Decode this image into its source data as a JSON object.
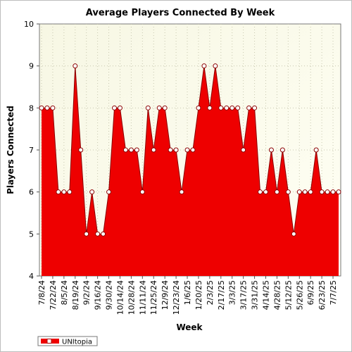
{
  "chart_data": {
    "type": "area",
    "title": "Average Players Connected By Week",
    "xlabel": "Week",
    "ylabel": "Players Connected",
    "ylim": [
      4,
      10
    ],
    "yticks": [
      4,
      5,
      6,
      7,
      8,
      9,
      10
    ],
    "grid": true,
    "legend_placement": "bottom-left",
    "tick_labels_x": [
      "7/8/24",
      "7/22/24",
      "8/5/24",
      "8/19/24",
      "9/2/24",
      "9/16/24",
      "9/30/24",
      "10/14/24",
      "10/28/24",
      "11/11/24",
      "11/25/24",
      "12/9/24",
      "12/23/24",
      "1/6/25",
      "1/20/25",
      "2/3/25",
      "2/17/25",
      "3/3/25",
      "3/17/25",
      "3/31/25",
      "4/14/25",
      "4/28/25",
      "5/12/25",
      "5/26/25",
      "6/9/25",
      "6/23/25",
      "7/7/25"
    ],
    "x": [
      "7/8/24",
      "7/15/24",
      "7/22/24",
      "7/29/24",
      "8/5/24",
      "8/12/24",
      "8/19/24",
      "8/26/24",
      "9/2/24",
      "9/9/24",
      "9/16/24",
      "9/23/24",
      "9/30/24",
      "10/7/24",
      "10/14/24",
      "10/21/24",
      "10/28/24",
      "11/4/24",
      "11/11/24",
      "11/18/24",
      "11/25/24",
      "12/2/24",
      "12/9/24",
      "12/16/24",
      "12/23/24",
      "12/30/24",
      "1/6/25",
      "1/13/25",
      "1/20/25",
      "1/27/25",
      "2/3/25",
      "2/10/25",
      "2/17/25",
      "2/24/25",
      "3/3/25",
      "3/10/25",
      "3/17/25",
      "3/24/25",
      "3/31/25",
      "4/7/25",
      "4/14/25",
      "4/21/25",
      "4/28/25",
      "5/5/25",
      "5/12/25",
      "5/19/25",
      "5/26/25",
      "6/2/25",
      "6/9/25",
      "6/16/25",
      "6/23/25",
      "6/30/25",
      "7/7/25",
      "7/14/25"
    ],
    "series": [
      {
        "name": "UNItopia",
        "color": "#ee0000",
        "values": [
          8,
          8,
          8,
          6,
          6,
          6,
          9,
          7,
          5,
          6,
          5,
          5,
          6,
          8,
          8,
          7,
          7,
          7,
          6,
          8,
          7,
          8,
          8,
          7,
          7,
          6,
          7,
          7,
          8,
          9,
          8,
          9,
          8,
          8,
          8,
          8,
          7,
          8,
          8,
          6,
          6,
          7,
          6,
          7,
          6,
          5,
          6,
          6,
          6,
          7,
          6,
          6,
          6,
          6
        ]
      }
    ]
  }
}
